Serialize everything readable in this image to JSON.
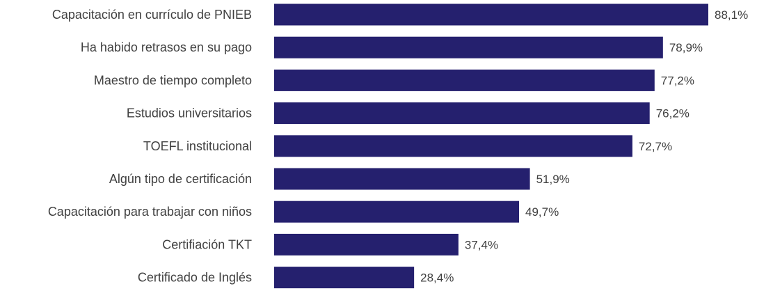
{
  "chart_data": {
    "type": "bar",
    "orientation": "horizontal",
    "categories": [
      "Capacitación en currículo de PNIEB",
      "Ha habido retrasos en su pago",
      "Maestro de tiempo completo",
      "Estudios universitarios",
      "TOEFL institucional",
      "Algún tipo de certificación",
      "Capacitación para trabajar con niños",
      "Certifiación TKT",
      "Certificado de Inglés"
    ],
    "values": [
      88.1,
      78.9,
      77.2,
      76.2,
      72.7,
      51.9,
      49.7,
      37.4,
      28.4
    ],
    "value_labels": [
      "88,1%",
      "78,9%",
      "77,2%",
      "76,2%",
      "72,7%",
      "51,9%",
      "49,7%",
      "37,4%",
      "28,4%"
    ],
    "xlim": [
      0,
      88.1
    ],
    "bar_color": "#25206E",
    "grid": false
  }
}
